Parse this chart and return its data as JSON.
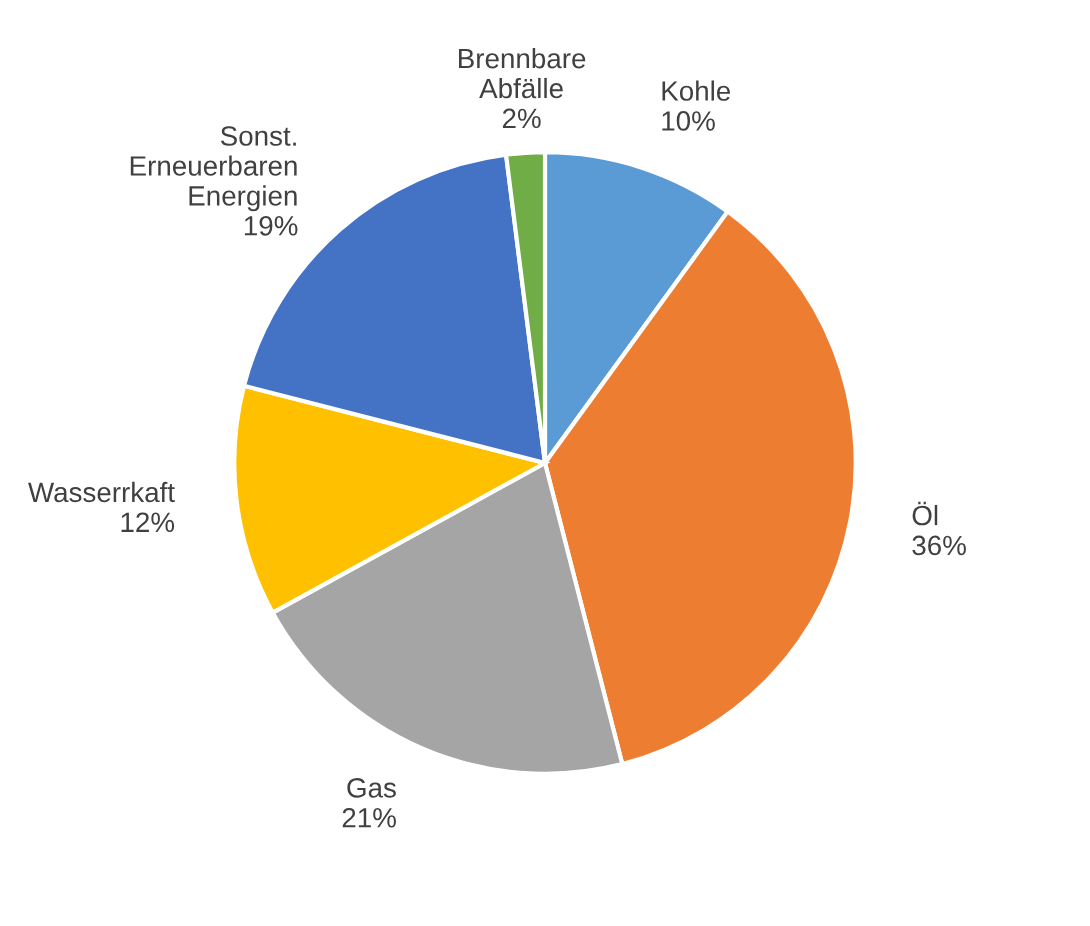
{
  "chart_data": {
    "type": "pie",
    "categories": [
      "Kohle",
      "Öl",
      "Gas",
      "Wasserrkaft",
      "Sonst.\nErneuerbaren\nEnergien",
      "Brennbare\nAbfälle"
    ],
    "values": [
      10,
      36,
      21,
      12,
      19,
      2
    ],
    "value_labels": [
      "10%",
      "36%",
      "21%",
      "12%",
      "19%",
      "2%"
    ],
    "colors": [
      "#5b9bd5",
      "#ed7d31",
      "#a5a5a5",
      "#ffc000",
      "#4472c4",
      "#70ad47"
    ]
  }
}
